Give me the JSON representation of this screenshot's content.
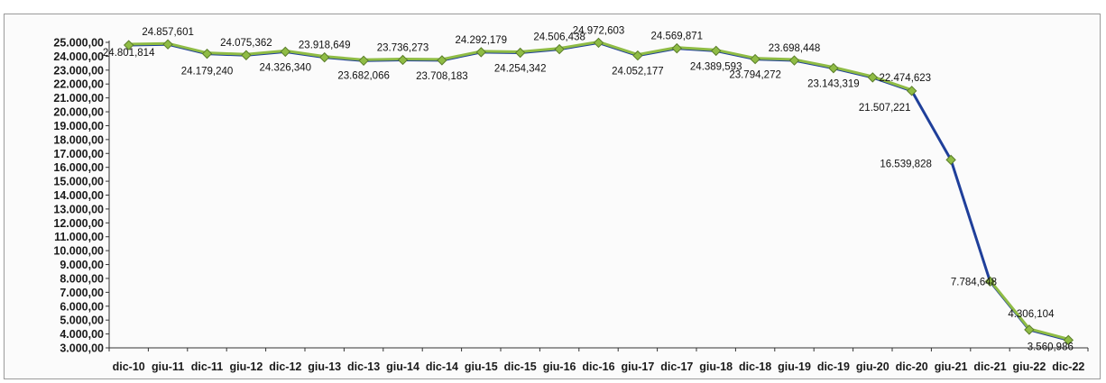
{
  "chart_data": {
    "type": "line",
    "title": "",
    "xlabel": "",
    "ylabel": "",
    "ylim": [
      3000,
      25000
    ],
    "grid": false,
    "legend": "none",
    "y_ticks": [
      "25.000,00",
      "24.000,00",
      "23.000,00",
      "22.000,00",
      "21.000,00",
      "20.000,00",
      "19.000,00",
      "18.000,00",
      "17.000,00",
      "16.000,00",
      "15.000,00",
      "14.000,00",
      "13.000,00",
      "12.000,00",
      "11.000,00",
      "10.000,00",
      "9.000,00",
      "8.000,00",
      "7.000,00",
      "6.000,00",
      "5.000,00",
      "4.000,00",
      "3.000,00"
    ],
    "categories": [
      "dic-10",
      "giu-11",
      "dic-11",
      "giu-12",
      "dic-12",
      "giu-13",
      "dic-13",
      "giu-14",
      "dic-14",
      "giu-15",
      "dic-15",
      "giu-16",
      "dic-16",
      "giu-17",
      "dic-17",
      "giu-18",
      "dic-18",
      "giu-19",
      "dic-19",
      "giu-20",
      "dic-20",
      "giu-21",
      "dic-21",
      "giu-22",
      "dic-22"
    ],
    "values": [
      24801.814,
      24857.601,
      24179.24,
      24075.362,
      24326.34,
      23918.649,
      23682.066,
      23736.273,
      23708.183,
      24292.179,
      24254.342,
      24506.438,
      24972.603,
      24052.177,
      24569.871,
      24389.593,
      23794.272,
      23698.448,
      23143.319,
      22474.623,
      21507.221,
      16539.828,
      7784.648,
      4306.104,
      3560.986
    ],
    "labels": [
      "24.801,814",
      "24.857,601",
      "24.179,240",
      "24.075,362",
      "24.326,340",
      "23.918,649",
      "23.682,066",
      "23.736,273",
      "23.708,183",
      "24.292,179",
      "24.254,342",
      "24.506,438",
      "24.972,603",
      "24.052,177",
      "24.569,871",
      "24.389,593",
      "23.794,272",
      "23.698,448",
      "23.143,319",
      "22.474,623",
      "21.507,221",
      "16.539,828",
      "7.784,648",
      "4.306,104",
      "3.560,986"
    ],
    "colors": {
      "line_under": "#1f3f9a",
      "line_over": "#8fbc45",
      "marker_fill": "#8fbc45",
      "marker_stroke": "#5a7d2a",
      "axis": "#333333"
    }
  }
}
